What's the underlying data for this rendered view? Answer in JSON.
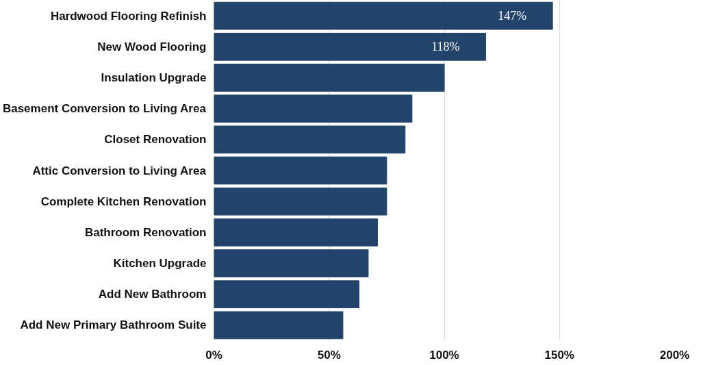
{
  "chart_data": {
    "type": "bar",
    "orientation": "horizontal",
    "categories": [
      "Hardwood Flooring Refinish",
      "New Wood Flooring",
      "Insulation Upgrade",
      "Basement Conversion to Living Area",
      "Closet Renovation",
      "Attic Conversion to Living Area",
      "Complete Kitchen Renovation",
      "Bathroom Renovation",
      "Kitchen Upgrade",
      "Add New Bathroom",
      "Add New Primary Bathroom Suite"
    ],
    "values": [
      147,
      118,
      100,
      86,
      83,
      75,
      75,
      71,
      67,
      63,
      56
    ],
    "value_labels": [
      "147%",
      "118%",
      null,
      null,
      null,
      null,
      null,
      null,
      null,
      null,
      null
    ],
    "color": "#23446a",
    "xlim": [
      0,
      200
    ],
    "xticks": [
      {
        "value": 0,
        "label": "0%"
      },
      {
        "value": 50,
        "label": "50%"
      },
      {
        "value": 100,
        "label": "100%"
      },
      {
        "value": 150,
        "label": "150%"
      },
      {
        "value": 200,
        "label": "200%"
      }
    ],
    "grid": "x"
  }
}
